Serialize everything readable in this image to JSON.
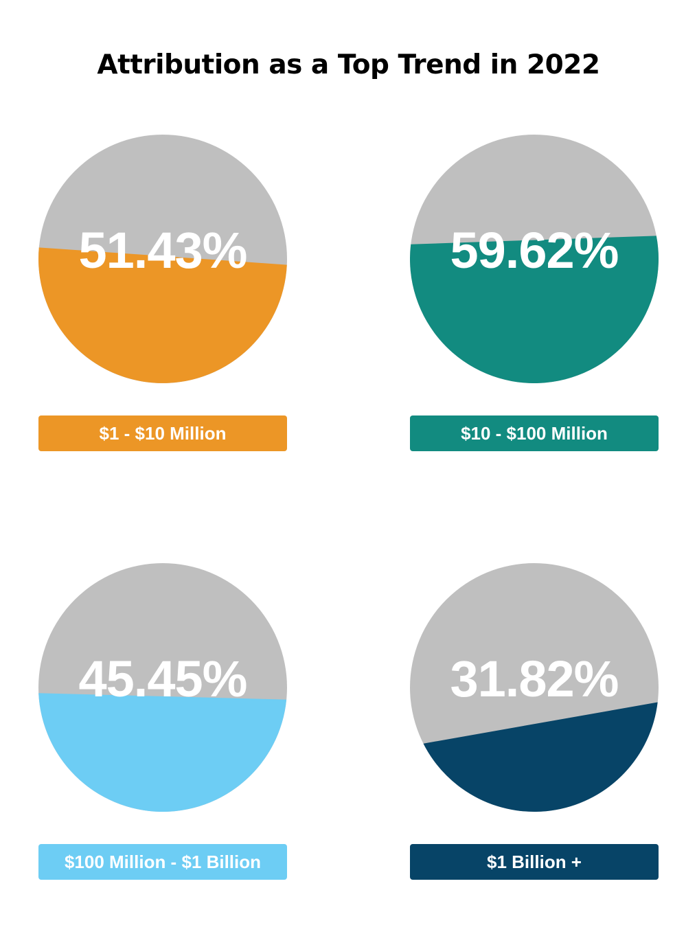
{
  "title": "Attribution as a Top Trend in 2022",
  "colors": {
    "remainder": "#bfbfbf",
    "text": "#ffffff"
  },
  "chart_data": [
    {
      "type": "pie",
      "category": "$1 - $10 Million",
      "value_label": "51.43%",
      "values": [
        51.43,
        48.57
      ],
      "colors": [
        "#ec9626",
        "#bfbfbf"
      ]
    },
    {
      "type": "pie",
      "category": "$10 - $100 Million",
      "value_label": "59.62%",
      "values": [
        59.62,
        40.38
      ],
      "colors": [
        "#128b80",
        "#bfbfbf"
      ]
    },
    {
      "type": "pie",
      "category": "$100 Million - $1 Billion",
      "value_label": "45.45%",
      "values": [
        45.45,
        54.55
      ],
      "colors": [
        "#6dcdf4",
        "#bfbfbf"
      ]
    },
    {
      "type": "pie",
      "category": "$1 Billion +",
      "value_label": "31.82%",
      "values": [
        31.82,
        68.18
      ],
      "colors": [
        "#074467",
        "#bfbfbf"
      ]
    }
  ]
}
